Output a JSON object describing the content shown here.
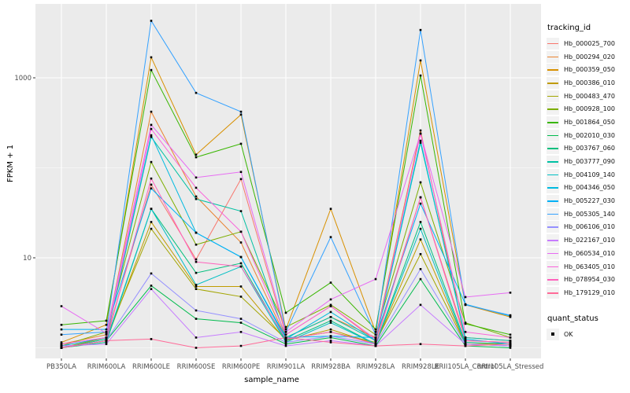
{
  "figure": {
    "xlabel": "sample_name",
    "ylabel": "FPKM + 1",
    "legend_tracking_title": "tracking_id",
    "legend_quant_title": "quant_status",
    "quant_label": "OK"
  },
  "chart_data": {
    "type": "line",
    "title": "",
    "xlabel": "sample_name",
    "ylabel": "FPKM + 1",
    "y_scale": "log10",
    "y_tick_labels": [
      "10",
      "1000"
    ],
    "y_ticks": [
      10,
      1000
    ],
    "y_minor_gridlines": [
      1,
      100
    ],
    "ylim": [
      0.8,
      6600
    ],
    "grid": "major white on gray panel, minor lighter",
    "legend_position": "right",
    "point_marker": "small black square (quant_status OK)",
    "panel_color": "#EBEBEB",
    "categories": [
      "PB350LA",
      "RRIM600LA",
      "RRIM600LE",
      "RRIM600SE",
      "RRIM600PE",
      "RRIM901LA",
      "RRIM928BA",
      "RRIM928LA",
      "RRIM928LE",
      "RRII105LA_Control",
      "RRII105LA_Stressed"
    ],
    "series": [
      {
        "name": "Hb_000025_700",
        "color": "#F8766D",
        "values": [
          1.0,
          1.3,
          65,
          9.6,
          75,
          1.4,
          2.9,
          1.2,
          47,
          1.3,
          1.2
        ]
      },
      {
        "name": "Hb_000294_020",
        "color": "#EA8331",
        "values": [
          1.1,
          1.4,
          420,
          48,
          14.8,
          1.3,
          2.2,
          1.3,
          260,
          1.2,
          1.15
        ]
      },
      {
        "name": "Hb_000359_050",
        "color": "#D89000",
        "values": [
          1.15,
          1.8,
          1690,
          140,
          390,
          1.6,
          35,
          1.5,
          1560,
          3.0,
          2.2
        ]
      },
      {
        "name": "Hb_000386_010",
        "color": "#C09B00",
        "values": [
          1.0,
          1.2,
          25,
          4.8,
          4.8,
          1.2,
          1.6,
          1.1,
          16,
          1.1,
          1.1
        ]
      },
      {
        "name": "Hb_000483_470",
        "color": "#A3A500",
        "values": [
          1.0,
          1.3,
          21,
          4.5,
          3.7,
          1.25,
          1.5,
          1.15,
          11,
          1.1,
          1.05
        ]
      },
      {
        "name": "Hb_000928_100",
        "color": "#7CAE00",
        "values": [
          1.05,
          1.5,
          116,
          14,
          19.5,
          1.7,
          3.0,
          1.4,
          69,
          1.9,
          1.3
        ]
      },
      {
        "name": "Hb_001864_050",
        "color": "#39B600",
        "values": [
          1.8,
          2.0,
          1220,
          131,
          185,
          2.45,
          5.3,
          1.6,
          1060,
          1.85,
          1.4
        ]
      },
      {
        "name": "Hb_002010_030",
        "color": "#00BB4E",
        "values": [
          1.0,
          1.2,
          4.9,
          2.1,
          1.9,
          1.1,
          1.3,
          1.05,
          5.8,
          1.05,
          1.0
        ]
      },
      {
        "name": "Hb_003767_060",
        "color": "#00BF7D",
        "values": [
          1.0,
          1.15,
          35,
          6.8,
          8.7,
          1.2,
          2.0,
          1.1,
          25,
          1.15,
          1.1
        ]
      },
      {
        "name": "Hb_003777_090",
        "color": "#00C1A3",
        "values": [
          1.0,
          1.25,
          220,
          45,
          33,
          1.3,
          2.2,
          1.2,
          190,
          1.3,
          1.2
        ]
      },
      {
        "name": "Hb_004109_140",
        "color": "#00BFC4",
        "values": [
          1.0,
          1.2,
          35,
          5.0,
          8.0,
          1.15,
          1.9,
          1.1,
          21,
          1.1,
          1.05
        ]
      },
      {
        "name": "Hb_004346_050",
        "color": "#00BAE0",
        "values": [
          1.05,
          1.3,
          230,
          19,
          10.2,
          1.25,
          2.5,
          1.2,
          200,
          1.25,
          1.1
        ]
      },
      {
        "name": "Hb_005227_030",
        "color": "#00B0F6",
        "values": [
          1.6,
          1.6,
          59,
          19,
          10.2,
          1.3,
          1.35,
          1.3,
          40,
          3.05,
          2.26
        ]
      },
      {
        "name": "Hb_005305_140",
        "color": "#35A2FF",
        "values": [
          1.4,
          1.5,
          4300,
          680,
          420,
          1.5,
          17,
          1.4,
          3400,
          3.0,
          2.3
        ]
      },
      {
        "name": "Hb_006106_010",
        "color": "#9590FF",
        "values": [
          1.0,
          1.2,
          6.7,
          2.6,
          2.1,
          1.15,
          1.35,
          1.1,
          7.5,
          1.1,
          1.05
        ]
      },
      {
        "name": "Hb_022167_010",
        "color": "#C77CFF",
        "values": [
          1.05,
          1.1,
          4.5,
          1.3,
          1.5,
          1.05,
          1.2,
          1.05,
          3.0,
          1.1,
          1.05
        ]
      },
      {
        "name": "Hb_060534_010",
        "color": "#E76BF3",
        "values": [
          2.9,
          1.45,
          300,
          78,
          90,
          1.5,
          3.45,
          5.8,
          240,
          3.66,
          4.1
        ]
      },
      {
        "name": "Hb_063405_010",
        "color": "#FA62DB",
        "values": [
          1.1,
          1.3,
          270,
          60,
          19.5,
          1.4,
          2.9,
          1.25,
          240,
          1.5,
          1.3
        ]
      },
      {
        "name": "Hb_078954_030",
        "color": "#FF62BC",
        "values": [
          1.0,
          1.2,
          76,
          9.0,
          8.0,
          1.25,
          1.5,
          1.1,
          47,
          1.2,
          1.15
        ]
      },
      {
        "name": "Hb_179129_010",
        "color": "#FF6A98",
        "values": [
          1.0,
          1.2,
          1.25,
          1.0,
          1.05,
          1.3,
          1.15,
          1.05,
          1.1,
          1.05,
          1.1
        ]
      }
    ]
  }
}
